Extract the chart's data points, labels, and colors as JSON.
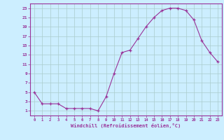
{
  "x": [
    0,
    1,
    2,
    3,
    4,
    5,
    6,
    7,
    8,
    9,
    10,
    11,
    12,
    13,
    14,
    15,
    16,
    17,
    18,
    19,
    20,
    21,
    22,
    23
  ],
  "y": [
    5.0,
    2.5,
    2.5,
    2.5,
    1.5,
    1.5,
    1.5,
    1.5,
    1.0,
    4.0,
    9.0,
    13.5,
    14.0,
    16.5,
    19.0,
    21.0,
    22.5,
    23.0,
    23.0,
    22.5,
    20.5,
    16.0,
    13.5,
    11.5
  ],
  "line_color": "#993399",
  "marker": "+",
  "marker_size": 3,
  "bg_color": "#cceeff",
  "grid_color": "#aacccc",
  "axis_color": "#993399",
  "tick_label_color": "#993399",
  "xlabel": "Windchill (Refroidissement éolien,°C)",
  "xlabel_color": "#993399",
  "ylim": [
    0,
    24
  ],
  "xlim": [
    -0.5,
    23.5
  ],
  "yticks": [
    1,
    3,
    5,
    7,
    9,
    11,
    13,
    15,
    17,
    19,
    21,
    23
  ],
  "xticks": [
    0,
    1,
    2,
    3,
    4,
    5,
    6,
    7,
    8,
    9,
    10,
    11,
    12,
    13,
    14,
    15,
    16,
    17,
    18,
    19,
    20,
    21,
    22,
    23
  ]
}
